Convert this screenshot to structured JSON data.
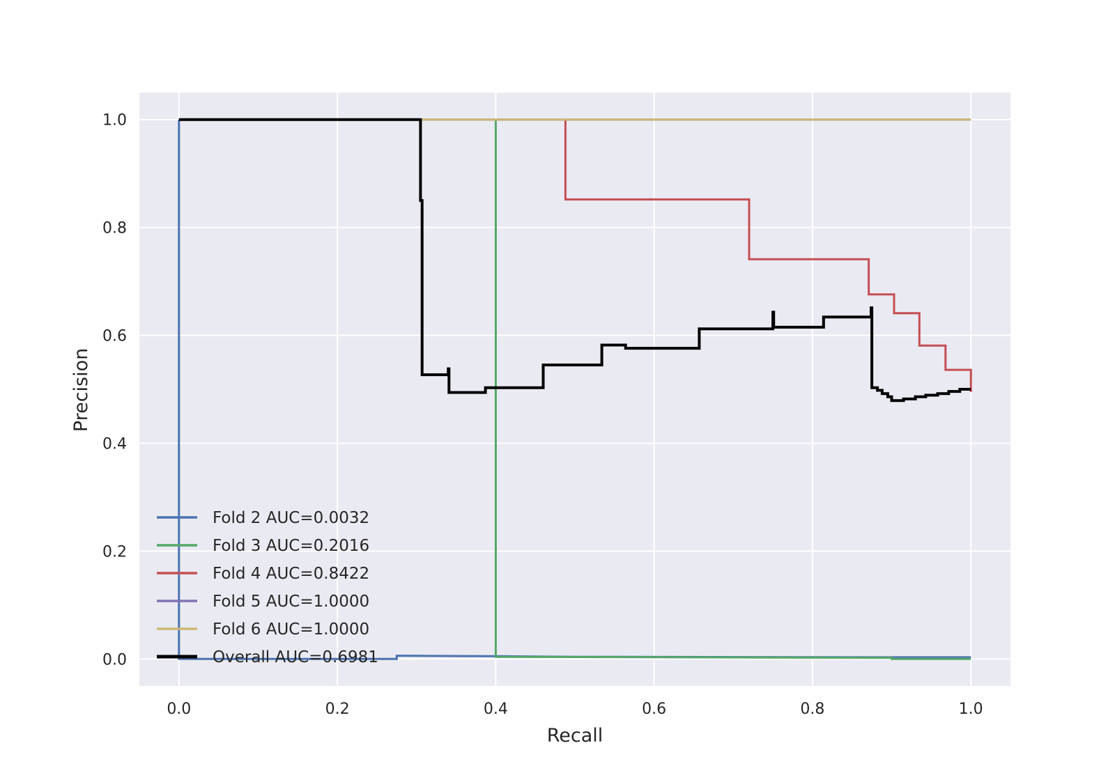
{
  "chart_data": {
    "type": "line",
    "title": "",
    "xlabel": "Recall",
    "ylabel": "Precision",
    "xlim": [
      -0.05,
      1.05
    ],
    "ylim": [
      -0.05,
      1.05
    ],
    "grid": true,
    "background": "#eaeaf2",
    "legend_position": "lower-left",
    "x_ticks": [
      0.0,
      0.2,
      0.4,
      0.6,
      0.8,
      1.0
    ],
    "y_ticks": [
      0.0,
      0.2,
      0.4,
      0.6,
      0.8,
      1.0
    ],
    "x_tick_labels": [
      "0.0",
      "0.2",
      "0.4",
      "0.6",
      "0.8",
      "1.0"
    ],
    "y_tick_labels": [
      "0.0",
      "0.2",
      "0.4",
      "0.6",
      "0.8",
      "1.0"
    ],
    "series": [
      {
        "name": "Fold 2 AUC=0.0032",
        "color": "#4c72b0",
        "points": [
          [
            1.0,
            0.003
          ],
          [
            0.9,
            0.003
          ],
          [
            0.5,
            0.004
          ],
          [
            0.41,
            0.005
          ],
          [
            0.275,
            0.006
          ],
          [
            0.275,
            0.0
          ],
          [
            0.0,
            0.0
          ],
          [
            0.0,
            1.0
          ]
        ]
      },
      {
        "name": "Fold 3 AUC=0.2016",
        "color": "#55a868",
        "points": [
          [
            1.0,
            0.0
          ],
          [
            0.9,
            0.0
          ],
          [
            0.9,
            0.002
          ],
          [
            0.4,
            0.004
          ],
          [
            0.4,
            1.0
          ]
        ]
      },
      {
        "name": "Fold 4 AUC=0.8422",
        "color": "#c44e52",
        "points": [
          [
            1.0,
            0.495
          ],
          [
            1.0,
            0.536
          ],
          [
            0.968,
            0.536
          ],
          [
            0.968,
            0.581
          ],
          [
            0.935,
            0.581
          ],
          [
            0.935,
            0.641
          ],
          [
            0.903,
            0.641
          ],
          [
            0.903,
            0.676
          ],
          [
            0.871,
            0.676
          ],
          [
            0.871,
            0.741
          ],
          [
            0.72,
            0.741
          ],
          [
            0.72,
            0.852
          ],
          [
            0.488,
            0.852
          ],
          [
            0.488,
            1.0
          ]
        ]
      },
      {
        "name": "Fold 5 AUC=1.0000",
        "color": "#8172b2",
        "points": [
          [
            0.305,
            1.0
          ],
          [
            1.0,
            1.0
          ]
        ]
      },
      {
        "name": "Fold 6 AUC=1.0000",
        "color": "#ccb974",
        "points": [
          [
            0.305,
            1.0
          ],
          [
            1.0,
            1.0
          ]
        ]
      },
      {
        "name": "Overall AUC=0.6981",
        "color": "#000000",
        "points": [
          [
            0.0,
            1.0
          ],
          [
            0.305,
            1.0
          ],
          [
            0.305,
            0.85
          ],
          [
            0.307,
            0.85
          ],
          [
            0.307,
            0.527
          ],
          [
            0.34,
            0.527
          ],
          [
            0.34,
            0.538
          ],
          [
            0.341,
            0.538
          ],
          [
            0.341,
            0.494
          ],
          [
            0.387,
            0.494
          ],
          [
            0.387,
            0.503
          ],
          [
            0.46,
            0.503
          ],
          [
            0.46,
            0.545
          ],
          [
            0.534,
            0.545
          ],
          [
            0.534,
            0.582
          ],
          [
            0.564,
            0.582
          ],
          [
            0.564,
            0.576
          ],
          [
            0.657,
            0.576
          ],
          [
            0.657,
            0.612
          ],
          [
            0.75,
            0.612
          ],
          [
            0.75,
            0.643
          ],
          [
            0.751,
            0.643
          ],
          [
            0.751,
            0.615
          ],
          [
            0.814,
            0.615
          ],
          [
            0.814,
            0.634
          ],
          [
            0.874,
            0.634
          ],
          [
            0.874,
            0.651
          ],
          [
            0.875,
            0.651
          ],
          [
            0.875,
            0.503
          ],
          [
            0.882,
            0.503
          ],
          [
            0.882,
            0.498
          ],
          [
            0.888,
            0.498
          ],
          [
            0.888,
            0.492
          ],
          [
            0.895,
            0.492
          ],
          [
            0.895,
            0.486
          ],
          [
            0.9,
            0.486
          ],
          [
            0.9,
            0.479
          ],
          [
            0.915,
            0.479
          ],
          [
            0.915,
            0.482
          ],
          [
            0.93,
            0.482
          ],
          [
            0.93,
            0.486
          ],
          [
            0.943,
            0.486
          ],
          [
            0.943,
            0.489
          ],
          [
            0.958,
            0.489
          ],
          [
            0.958,
            0.492
          ],
          [
            0.972,
            0.492
          ],
          [
            0.972,
            0.496
          ],
          [
            0.986,
            0.496
          ],
          [
            0.986,
            0.5
          ],
          [
            1.0,
            0.5
          ]
        ]
      }
    ]
  }
}
